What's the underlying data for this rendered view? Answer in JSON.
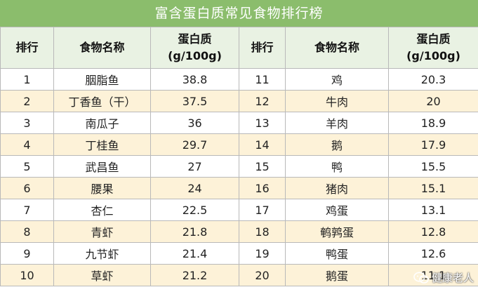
{
  "title": "富含蛋白质常见食物排行榜",
  "headers": {
    "rank": "排行",
    "food": "食物名称",
    "protein_line1": "蛋白质",
    "protein_line2": "(g/100g)"
  },
  "rows": [
    {
      "rank_a": "1",
      "food_a": "胭脂鱼",
      "val_a": "38.8",
      "rank_b": "11",
      "food_b": "鸡",
      "val_b": "20.3"
    },
    {
      "rank_a": "2",
      "food_a": "丁香鱼（干）",
      "val_a": "37.5",
      "rank_b": "12",
      "food_b": "牛肉",
      "val_b": "20"
    },
    {
      "rank_a": "3",
      "food_a": "南瓜子",
      "val_a": "36",
      "rank_b": "13",
      "food_b": "羊肉",
      "val_b": "18.9"
    },
    {
      "rank_a": "4",
      "food_a": "丁桂鱼",
      "val_a": "29.7",
      "rank_b": "14",
      "food_b": "鹅",
      "val_b": "17.9"
    },
    {
      "rank_a": "5",
      "food_a": "武昌鱼",
      "val_a": "27",
      "rank_b": "15",
      "food_b": "鸭",
      "val_b": "15.5"
    },
    {
      "rank_a": "6",
      "food_a": "腰果",
      "val_a": "24",
      "rank_b": "16",
      "food_b": "猪肉",
      "val_b": "15.1"
    },
    {
      "rank_a": "7",
      "food_a": "杏仁",
      "val_a": "22.5",
      "rank_b": "17",
      "food_b": "鸡蛋",
      "val_b": "13.1"
    },
    {
      "rank_a": "8",
      "food_a": "青虾",
      "val_a": "21.8",
      "rank_b": "18",
      "food_b": "鹌鹑蛋",
      "val_b": "12.8"
    },
    {
      "rank_a": "9",
      "food_a": "九节虾",
      "val_a": "21.4",
      "rank_b": "19",
      "food_b": "鸭蛋",
      "val_b": "12.6"
    },
    {
      "rank_a": "10",
      "food_a": "草虾",
      "val_a": "21.2",
      "rank_b": "20",
      "food_b": "鹅蛋",
      "val_b": "11.1"
    }
  ],
  "watermark": {
    "text": "健康老人",
    "icon": "wechat-icon"
  },
  "colors": {
    "title_bg": "#8bbd6c",
    "header_bg": "#e9f2e3",
    "stripe": "#fdf2d8",
    "border": "#b9b9b9"
  }
}
